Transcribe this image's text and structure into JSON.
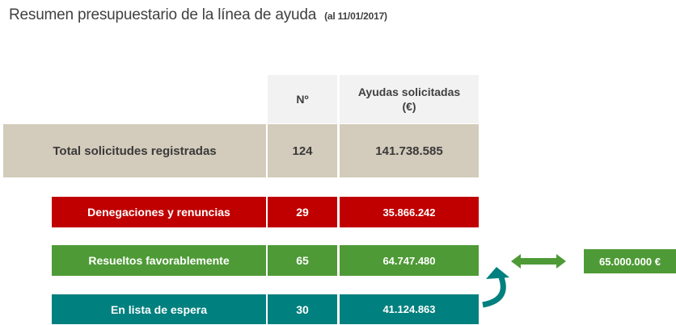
{
  "title": {
    "main": "Resumen presupuestario de la línea de ayuda",
    "date": "(al 11/01/2017)"
  },
  "table": {
    "header_n": "Nº",
    "header_ayudas_line1": "Ayudas  solicitadas",
    "header_ayudas_line2": "(€)",
    "rows": [
      {
        "label": "Total solicitudes registradas",
        "n": "124",
        "amount": "141.738.585"
      },
      {
        "label": "Denegaciones y renuncias",
        "n": "29",
        "amount": "35.866.242"
      },
      {
        "label": "Resueltos favorablemente",
        "n": "65",
        "amount": "64.747.480"
      },
      {
        "label": "En lista de espera",
        "n": "30",
        "amount": "41.124.863"
      }
    ]
  },
  "budget_box": {
    "label": "65.000.000 €"
  },
  "colors": {
    "total": "#d3cbbb",
    "denegaciones": "#c00000",
    "favorables": "#4e9a36",
    "espera": "#00807e",
    "header": "#f2f2f2"
  },
  "icons": {
    "double_arrow": "double-arrow-icon",
    "curved_arrow": "curved-arrow-icon"
  }
}
